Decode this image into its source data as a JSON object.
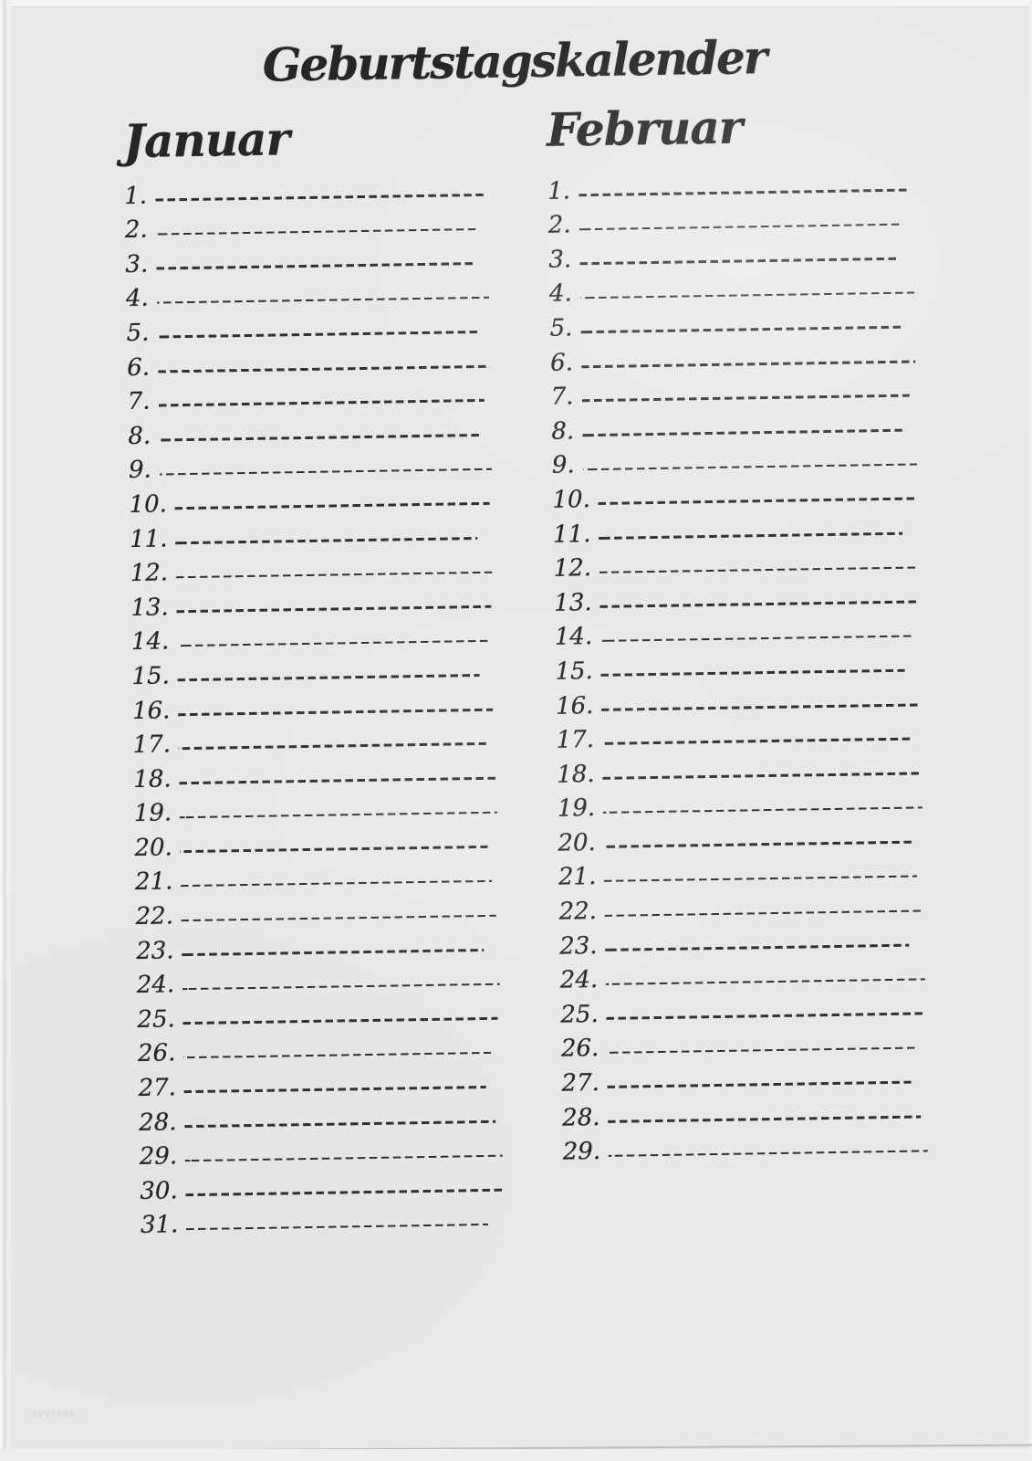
{
  "title": "Geburtstagskalender",
  "months": [
    {
      "name": "Januar",
      "days": [
        "1.",
        "2.",
        "3.",
        "4.",
        "5.",
        "6.",
        "7.",
        "8.",
        "9.",
        "10.",
        "11.",
        "12.",
        "13.",
        "14.",
        "15.",
        "16.",
        "17.",
        "18.",
        "19.",
        "20.",
        "21.",
        "22.",
        "23.",
        "24.",
        "25.",
        "26.",
        "27.",
        "28.",
        "29.",
        "30.",
        "31."
      ]
    },
    {
      "name": "Februar",
      "days": [
        "1.",
        "2.",
        "3.",
        "4.",
        "5.",
        "6.",
        "7.",
        "8.",
        "9.",
        "10.",
        "11.",
        "12.",
        "13.",
        "14.",
        "15.",
        "16.",
        "17.",
        "18.",
        "19.",
        "20.",
        "21.",
        "22.",
        "23.",
        "24.",
        "25.",
        "26.",
        "27.",
        "28.",
        "29."
      ]
    }
  ],
  "watermark": "tyyvexo",
  "colors": {
    "paper": "#e8e8e7",
    "ink": "#262626",
    "dash": "#303030",
    "edge_line": "#bdbdbd",
    "watermark": "#d3d3d2"
  }
}
